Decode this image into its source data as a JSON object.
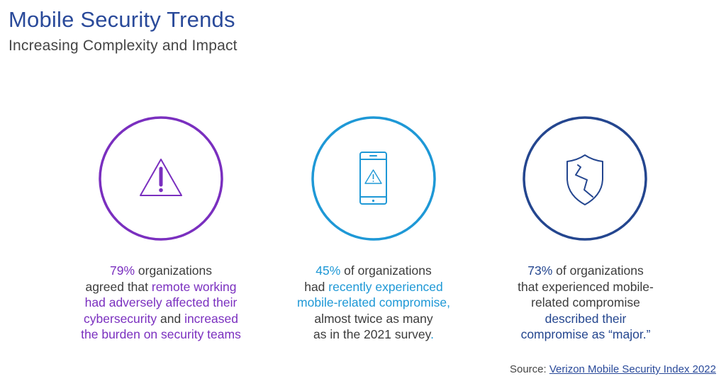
{
  "header": {
    "title": "Mobile Security Trends",
    "subtitle": "Increasing Complexity and Impact"
  },
  "colors": {
    "title": "#2a4a9a",
    "purple": "#7a2fbf",
    "cyan": "#1e98d6",
    "navy": "#24468f",
    "body_text": "#3c3c3c"
  },
  "stats": [
    {
      "icon": "warning-triangle-icon",
      "lines": [
        [
          {
            "t": "79%",
            "h": true
          },
          {
            "t": " organizations",
            "h": false
          }
        ],
        [
          {
            "t": "agreed that ",
            "h": false
          },
          {
            "t": "remote working",
            "h": true
          }
        ],
        [
          {
            "t": "had adversely affected their",
            "h": true
          }
        ],
        [
          {
            "t": "cybersecurity",
            "h": true
          },
          {
            "t": " and ",
            "h": false
          },
          {
            "t": "increased",
            "h": true
          }
        ],
        [
          {
            "t": "the burden on security teams",
            "h": true
          }
        ]
      ]
    },
    {
      "icon": "mobile-phone-warning-icon",
      "lines": [
        [
          {
            "t": "45%",
            "h": true
          },
          {
            "t": " of organizations",
            "h": false
          }
        ],
        [
          {
            "t": "had ",
            "h": false
          },
          {
            "t": "recently experienced",
            "h": true
          }
        ],
        [
          {
            "t": "mobile-related compromise,",
            "h": true
          }
        ],
        [
          {
            "t": "almost twice as many",
            "h": false
          }
        ],
        [
          {
            "t": "as in the 2021 survey",
            "h": false
          },
          {
            "t": ".",
            "h": true
          }
        ]
      ]
    },
    {
      "icon": "broken-shield-icon",
      "lines": [
        [
          {
            "t": "73%",
            "h": true
          },
          {
            "t": " of organizations",
            "h": false
          }
        ],
        [
          {
            "t": "that experienced mobile-",
            "h": false
          }
        ],
        [
          {
            "t": "related compromise",
            "h": false
          }
        ],
        [
          {
            "t": "described their",
            "h": true
          }
        ],
        [
          {
            "t": "compromise as “major.”",
            "h": true
          }
        ]
      ]
    }
  ],
  "source": {
    "label": "Source: ",
    "link_text": "Verizon Mobile Security Index 2022"
  }
}
